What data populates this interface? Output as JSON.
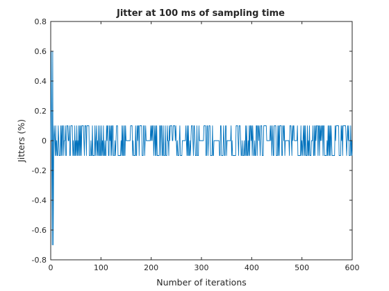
{
  "chart_data": {
    "type": "line",
    "title": "Jitter at 100 ms of sampling time",
    "xlabel": "Number of iterations",
    "ylabel": "Jitters (%)",
    "xlim": [
      0,
      600
    ],
    "ylim": [
      -0.8,
      0.8
    ],
    "xticks": [
      "0",
      "100",
      "200",
      "300",
      "400",
      "500",
      "600"
    ],
    "yticks": [
      "0.8",
      "0.6",
      "0.4",
      "0.2",
      "0",
      "-0.2",
      "-0.4",
      "-0.6",
      "-0.8"
    ],
    "grid": false,
    "series": [
      {
        "color": "#0072bd",
        "initial_values": [
          0,
          0.6,
          0,
          -0.7,
          0.6,
          -0.7,
          0,
          0.1,
          0
        ],
        "steady_state_levels": [
          -0.1,
          0,
          0.1
        ],
        "values_from_iteration_9": "alternating jitter within ±0.1 %",
        "total_iterations": 600
      }
    ]
  }
}
